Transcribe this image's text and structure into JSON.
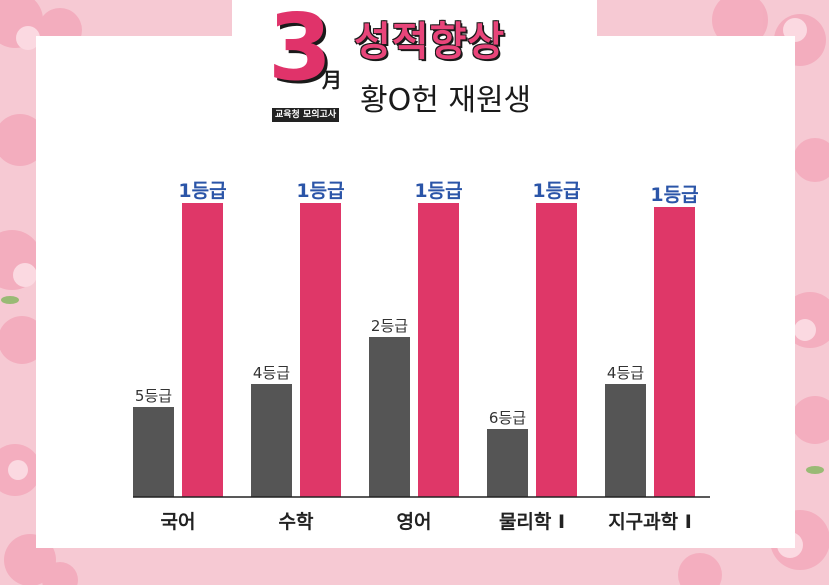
{
  "header": {
    "month_number": "3",
    "month_char": "月",
    "exam_badge": "교육청 모의고사",
    "headline": "성적향상",
    "student": "황O헌 재원생"
  },
  "colors": {
    "before": "#555555",
    "after": "#df3768",
    "after_label": "#2b55a8",
    "headline": "#e8457a",
    "background": "#f6c9d3"
  },
  "chart_data": {
    "type": "bar",
    "categories": [
      "국어",
      "수학",
      "영어",
      "물리학 I",
      "지구과학 I"
    ],
    "series": [
      {
        "values": [
          5,
          4,
          2,
          6,
          4
        ],
        "labels": [
          "5등급",
          "4등급",
          "2등급",
          "6등급",
          "4등급"
        ]
      },
      {
        "values": [
          1,
          1,
          1,
          1,
          1
        ],
        "labels": [
          "1등급",
          "1등급",
          "1등급",
          "1등급",
          "1등급"
        ]
      }
    ],
    "title": "",
    "xlabel": "",
    "ylabel": "",
    "grid": false
  }
}
